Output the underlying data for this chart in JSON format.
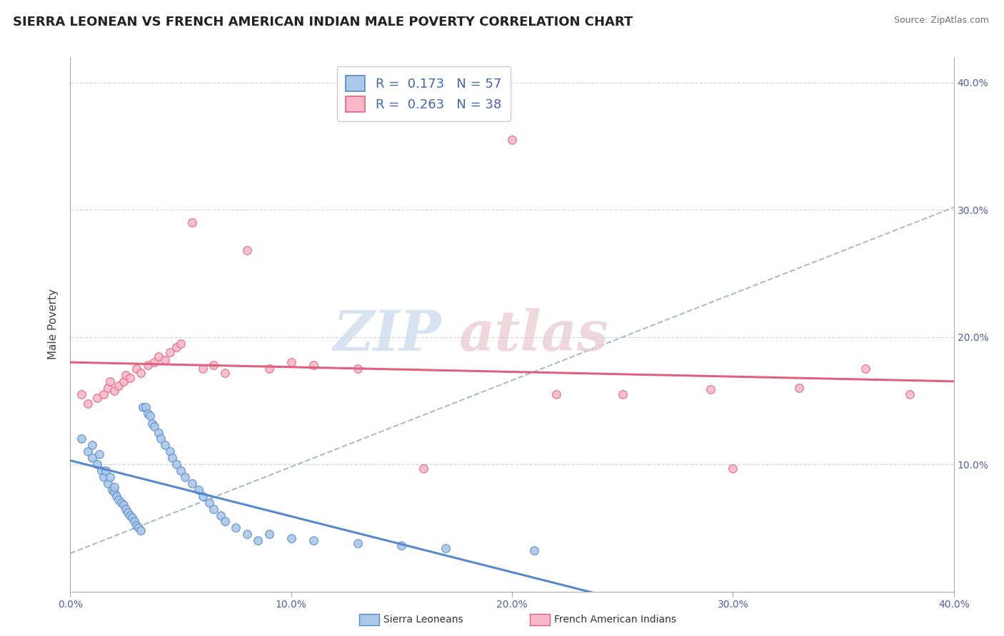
{
  "title": "SIERRA LEONEAN VS FRENCH AMERICAN INDIAN MALE POVERTY CORRELATION CHART",
  "source": "Source: ZipAtlas.com",
  "ylabel": "Male Poverty",
  "xlim": [
    0.0,
    0.4
  ],
  "ylim": [
    0.0,
    0.42
  ],
  "xtick_labels": [
    "0.0%",
    "10.0%",
    "20.0%",
    "30.0%",
    "40.0%"
  ],
  "xtick_vals": [
    0.0,
    0.1,
    0.2,
    0.3,
    0.4
  ],
  "ytick_labels": [
    "10.0%",
    "20.0%",
    "30.0%",
    "40.0%"
  ],
  "ytick_vals": [
    0.1,
    0.2,
    0.3,
    0.4
  ],
  "sierra_R": 0.173,
  "sierra_N": 57,
  "french_R": 0.263,
  "french_N": 38,
  "sierra_color": "#aac8e8",
  "french_color": "#f8b8c8",
  "sierra_line_color": "#5588cc",
  "french_line_color": "#e06080",
  "trendline_color": "#aabbcc",
  "legend_label_1": "Sierra Leoneans",
  "legend_label_2": "French American Indians",
  "sierra_x": [
    0.005,
    0.008,
    0.01,
    0.01,
    0.012,
    0.013,
    0.014,
    0.015,
    0.016,
    0.017,
    0.018,
    0.019,
    0.02,
    0.02,
    0.021,
    0.022,
    0.023,
    0.024,
    0.025,
    0.026,
    0.027,
    0.028,
    0.029,
    0.03,
    0.031,
    0.032,
    0.033,
    0.034,
    0.035,
    0.036,
    0.037,
    0.038,
    0.04,
    0.041,
    0.043,
    0.045,
    0.046,
    0.048,
    0.05,
    0.052,
    0.055,
    0.058,
    0.06,
    0.063,
    0.065,
    0.068,
    0.07,
    0.075,
    0.08,
    0.085,
    0.09,
    0.1,
    0.11,
    0.13,
    0.15,
    0.17,
    0.21
  ],
  "sierra_y": [
    0.12,
    0.11,
    0.105,
    0.115,
    0.1,
    0.108,
    0.095,
    0.09,
    0.095,
    0.085,
    0.09,
    0.08,
    0.078,
    0.082,
    0.075,
    0.072,
    0.07,
    0.068,
    0.065,
    0.062,
    0.06,
    0.058,
    0.055,
    0.052,
    0.05,
    0.048,
    0.145,
    0.145,
    0.14,
    0.138,
    0.132,
    0.13,
    0.125,
    0.12,
    0.115,
    0.11,
    0.105,
    0.1,
    0.095,
    0.09,
    0.085,
    0.08,
    0.075,
    0.07,
    0.065,
    0.06,
    0.055,
    0.05,
    0.045,
    0.04,
    0.045,
    0.042,
    0.04,
    0.038,
    0.036,
    0.034,
    0.032
  ],
  "french_x": [
    0.005,
    0.008,
    0.012,
    0.015,
    0.017,
    0.018,
    0.02,
    0.022,
    0.024,
    0.025,
    0.027,
    0.03,
    0.032,
    0.035,
    0.038,
    0.04,
    0.043,
    0.045,
    0.048,
    0.05,
    0.055,
    0.06,
    0.065,
    0.07,
    0.08,
    0.09,
    0.1,
    0.11,
    0.13,
    0.16,
    0.2,
    0.22,
    0.25,
    0.29,
    0.3,
    0.33,
    0.36,
    0.38
  ],
  "french_y": [
    0.155,
    0.148,
    0.152,
    0.155,
    0.16,
    0.165,
    0.158,
    0.162,
    0.165,
    0.17,
    0.168,
    0.175,
    0.172,
    0.178,
    0.18,
    0.185,
    0.182,
    0.188,
    0.192,
    0.195,
    0.29,
    0.175,
    0.178,
    0.172,
    0.268,
    0.175,
    0.18,
    0.178,
    0.175,
    0.097,
    0.355,
    0.155,
    0.155,
    0.159,
    0.097,
    0.16,
    0.175,
    0.155
  ],
  "background_color": "#ffffff",
  "grid_color": "#ccd8e8",
  "title_fontsize": 13,
  "axis_fontsize": 10,
  "marker_size": 70,
  "watermark_zip_color": "#c8d8ec",
  "watermark_atlas_color": "#e8c8cc"
}
